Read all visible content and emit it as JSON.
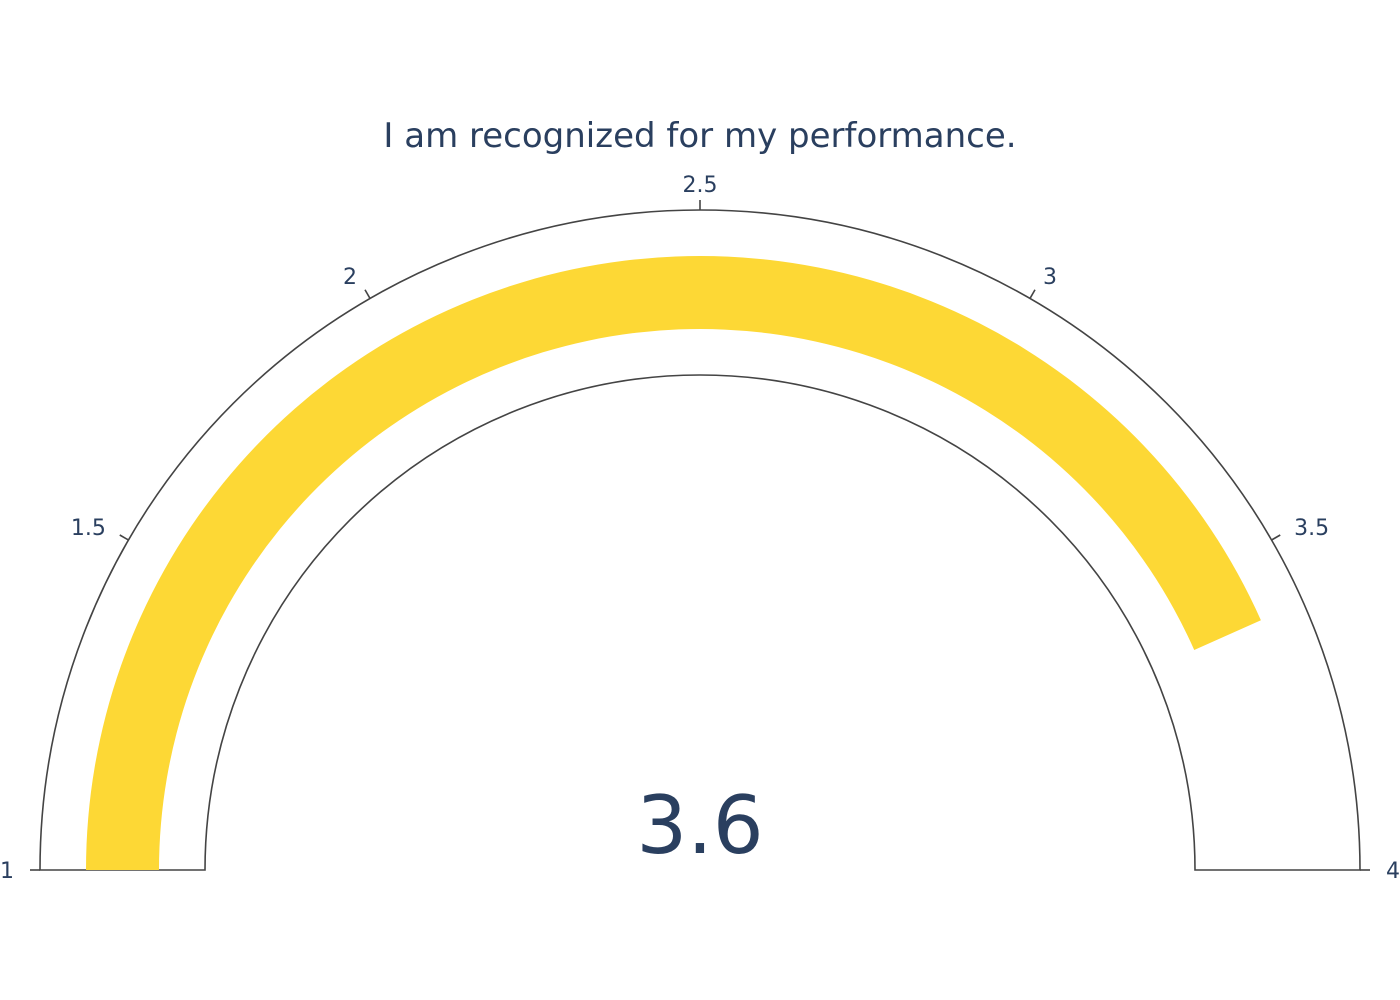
{
  "chart_data": {
    "type": "gauge",
    "title": "I am recognized for my performance.",
    "value": 3.6,
    "value_label": "3.6",
    "range": [
      1,
      4
    ],
    "ticks": [
      1,
      1.5,
      2,
      2.5,
      3,
      3.5,
      4
    ],
    "tick_labels": [
      "1",
      "1.5",
      "2",
      "2.5",
      "3",
      "3.5",
      "4"
    ],
    "bar_color": "#fdd835",
    "outline_color": "#444444",
    "text_color": "#2a3f5f"
  }
}
